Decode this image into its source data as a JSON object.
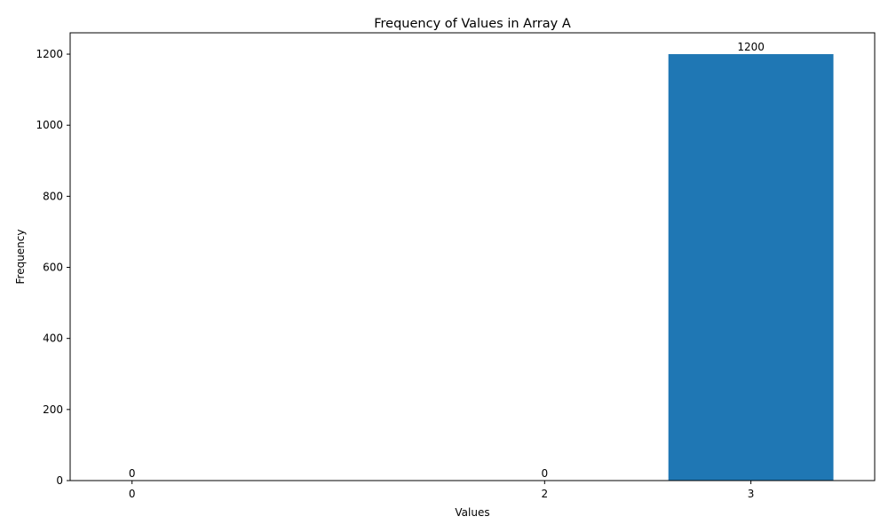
{
  "chart_data": {
    "type": "bar",
    "title": "Frequency of Values in Array A",
    "xlabel": "Values",
    "ylabel": "Frequency",
    "x": [
      0,
      2,
      3
    ],
    "x_tick_labels": [
      "0",
      "2",
      "3"
    ],
    "values": [
      0,
      0,
      1200
    ],
    "data_labels": [
      "0",
      "0",
      "1200"
    ],
    "y_ticks": [
      0,
      200,
      400,
      600,
      800,
      1000,
      1200
    ],
    "y_tick_labels": [
      "0",
      "200",
      "400",
      "600",
      "800",
      "1000",
      "1200"
    ],
    "xlim": [
      -0.3,
      3.6
    ],
    "ylim": [
      0,
      1260
    ],
    "bar_color": "#1f77b4",
    "grid": false,
    "legend": "none"
  }
}
